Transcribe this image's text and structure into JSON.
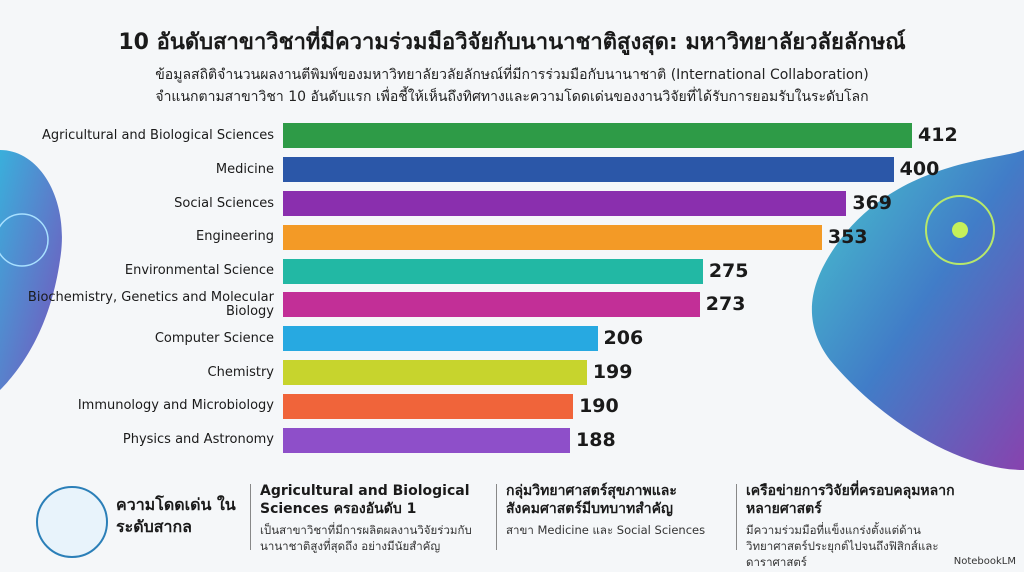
{
  "chart_data": {
    "type": "bar",
    "orientation": "horizontal",
    "title": "10 อันดับสาขาวิชาที่มีความร่วมมือวิจัยกับนานาชาติสูงสุด: มหาวิทยาลัยวลัยลักษณ์",
    "subtitle_lines": [
      "ข้อมูลสถิติจำนวนผลงานตีพิมพ์ของมหาวิทยาลัยวลัยลักษณ์ที่มีการร่วมมือกับนานาชาติ (International Collaboration)",
      "จำแนกตามสาขาวิชา 10 อันดับแรก เพื่อชี้ให้เห็นถึงทิศทางและความโดดเด่นของงานวิจัยที่ได้รับการยอมรับในระดับโลก"
    ],
    "categories": [
      "Agricultural and Biological Sciences",
      "Medicine",
      "Social Sciences",
      "Engineering",
      "Environmental Science",
      "Biochemistry, Genetics and Molecular Biology",
      "Computer Science",
      "Chemistry",
      "Immunology and Microbiology",
      "Physics and Astronomy"
    ],
    "values": [
      412,
      400,
      369,
      353,
      275,
      273,
      206,
      199,
      190,
      188
    ],
    "colors": [
      "#2e9b47",
      "#2b57a8",
      "#8a2fae",
      "#f39a26",
      "#22b8a4",
      "#c22f97",
      "#27a9e1",
      "#c7d42d",
      "#f0643a",
      "#8e4fc9"
    ]
  },
  "footer": {
    "badge": "ความโดดเด่น ในระดับสากล",
    "panels": [
      {
        "title": "Agricultural and Biological Sciences ครองอันดับ 1",
        "body": "เป็นสาขาวิชาที่มีการผลิตผลงานวิจัยร่วมกับนานาชาติสูงที่สุดถึง อย่างมีนัยสำคัญ"
      },
      {
        "title": "กลุ่มวิทยาศาสตร์สุขภาพและสังคมศาสตร์มีบทบาทสำคัญ",
        "body": "สาขา Medicine และ Social Sciences"
      },
      {
        "title": "เครือข่ายการวิจัยที่ครอบคลุมหลากหลายศาสตร์",
        "body": "มีความร่วมมือที่แข็งแกร่งตั้งแต่ด้านวิทยาศาสตร์ประยุกต์ไปจนถึงฟิสิกส์และดาราศาสตร์"
      }
    ],
    "watermark": "NotebookLM"
  }
}
